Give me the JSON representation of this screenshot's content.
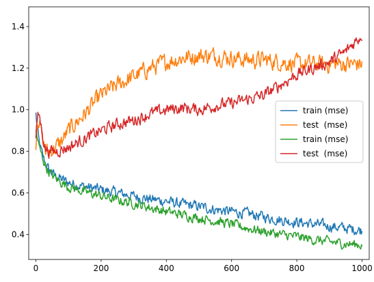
{
  "chart_data": {
    "type": "line",
    "title": "",
    "xlabel": "",
    "ylabel": "",
    "xlim": [
      -22,
      1022
    ],
    "ylim": [
      0.28,
      1.495
    ],
    "xticks": [
      0,
      200,
      400,
      600,
      800,
      1000
    ],
    "yticks": [
      0.4,
      0.6,
      0.8,
      1.0,
      1.2,
      1.4
    ],
    "xtick_labels": [
      "0",
      "200",
      "400",
      "600",
      "800",
      "1000"
    ],
    "ytick_labels": [
      "0.4",
      "0.6",
      "0.8",
      "1.0",
      "1.2",
      "1.4"
    ],
    "grid": false,
    "legend_position": "center-right",
    "series": [
      {
        "name": "train (mse)",
        "color": "#1f77b4",
        "noise": 0.022,
        "x": [
          0,
          5,
          10,
          20,
          30,
          40,
          60,
          80,
          100,
          150,
          200,
          250,
          300,
          350,
          400,
          450,
          500,
          550,
          600,
          650,
          700,
          750,
          800,
          850,
          900,
          950,
          1000
        ],
        "y": [
          0.98,
          0.9,
          0.84,
          0.78,
          0.74,
          0.71,
          0.68,
          0.665,
          0.65,
          0.63,
          0.615,
          0.6,
          0.585,
          0.57,
          0.56,
          0.545,
          0.535,
          0.52,
          0.51,
          0.5,
          0.485,
          0.47,
          0.46,
          0.45,
          0.44,
          0.43,
          0.42
        ]
      },
      {
        "name": "test  (mse)",
        "color": "#ff7f0e",
        "noise": 0.035,
        "x": [
          0,
          5,
          10,
          20,
          30,
          40,
          60,
          80,
          100,
          150,
          200,
          250,
          300,
          350,
          400,
          450,
          500,
          550,
          600,
          650,
          700,
          750,
          800,
          850,
          900,
          950,
          1000
        ],
        "y": [
          0.84,
          0.97,
          0.95,
          0.86,
          0.8,
          0.8,
          0.82,
          0.85,
          0.9,
          0.98,
          1.07,
          1.12,
          1.16,
          1.2,
          1.23,
          1.25,
          1.26,
          1.26,
          1.25,
          1.24,
          1.24,
          1.23,
          1.22,
          1.22,
          1.22,
          1.22,
          1.22
        ]
      },
      {
        "name": "train (mse)",
        "color": "#2ca02c",
        "noise": 0.02,
        "x": [
          0,
          5,
          10,
          20,
          30,
          40,
          60,
          80,
          100,
          150,
          200,
          250,
          300,
          350,
          400,
          450,
          500,
          550,
          600,
          650,
          700,
          750,
          800,
          850,
          900,
          950,
          1000
        ],
        "y": [
          0.9,
          0.86,
          0.82,
          0.77,
          0.73,
          0.7,
          0.67,
          0.65,
          0.63,
          0.605,
          0.585,
          0.565,
          0.55,
          0.53,
          0.51,
          0.495,
          0.48,
          0.465,
          0.45,
          0.43,
          0.415,
          0.4,
          0.39,
          0.375,
          0.365,
          0.355,
          0.35
        ]
      },
      {
        "name": "test  (mse)",
        "color": "#d62728",
        "noise": 0.025,
        "x": [
          0,
          5,
          10,
          20,
          30,
          40,
          60,
          80,
          100,
          150,
          200,
          250,
          300,
          350,
          400,
          450,
          500,
          550,
          600,
          650,
          700,
          750,
          800,
          850,
          900,
          950,
          980,
          1000
        ],
        "y": [
          0.86,
          0.96,
          0.98,
          0.88,
          0.81,
          0.8,
          0.8,
          0.81,
          0.82,
          0.86,
          0.9,
          0.93,
          0.95,
          0.98,
          1.0,
          1.01,
          1.0,
          1.02,
          1.03,
          1.05,
          1.07,
          1.12,
          1.17,
          1.2,
          1.23,
          1.28,
          1.33,
          1.36
        ]
      }
    ]
  }
}
